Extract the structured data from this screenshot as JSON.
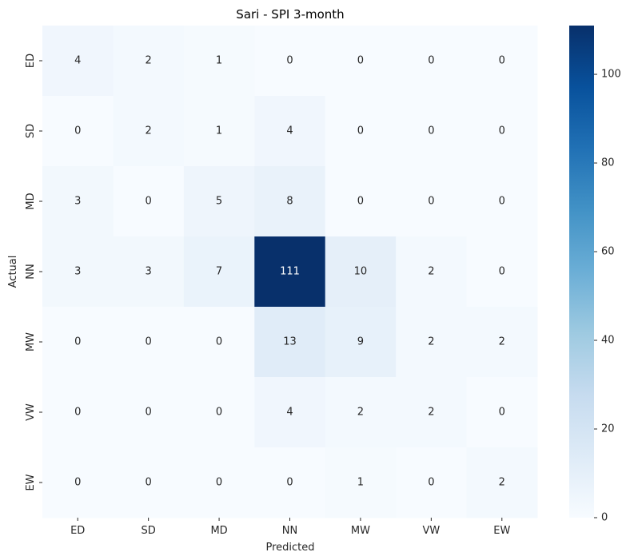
{
  "chart_data": {
    "type": "heatmap",
    "title": "Sari - SPI 3-month",
    "xlabel": "Predicted",
    "ylabel": "Actual",
    "x_categories": [
      "ED",
      "SD",
      "MD",
      "NN",
      "MW",
      "VW",
      "EW"
    ],
    "y_categories": [
      "ED",
      "SD",
      "MD",
      "NN",
      "MW",
      "VW",
      "EW"
    ],
    "values": [
      [
        4,
        2,
        1,
        0,
        0,
        0,
        0
      ],
      [
        0,
        2,
        1,
        4,
        0,
        0,
        0
      ],
      [
        3,
        0,
        5,
        8,
        0,
        0,
        0
      ],
      [
        3,
        3,
        7,
        111,
        10,
        2,
        0
      ],
      [
        0,
        0,
        0,
        13,
        9,
        2,
        2
      ],
      [
        0,
        0,
        0,
        4,
        2,
        2,
        0
      ],
      [
        0,
        0,
        0,
        0,
        1,
        0,
        2
      ]
    ],
    "colormap": "Blues",
    "colors": [
      "#f7fbff",
      "#deebf7",
      "#c6dbef",
      "#9ecae1",
      "#6baed6",
      "#4292c6",
      "#2171b5",
      "#08519c",
      "#08306b"
    ],
    "vmin": 0,
    "vmax": 111,
    "colorbar_ticks": [
      0,
      20,
      40,
      60,
      80,
      100
    ],
    "annotated": true,
    "grid": false
  }
}
